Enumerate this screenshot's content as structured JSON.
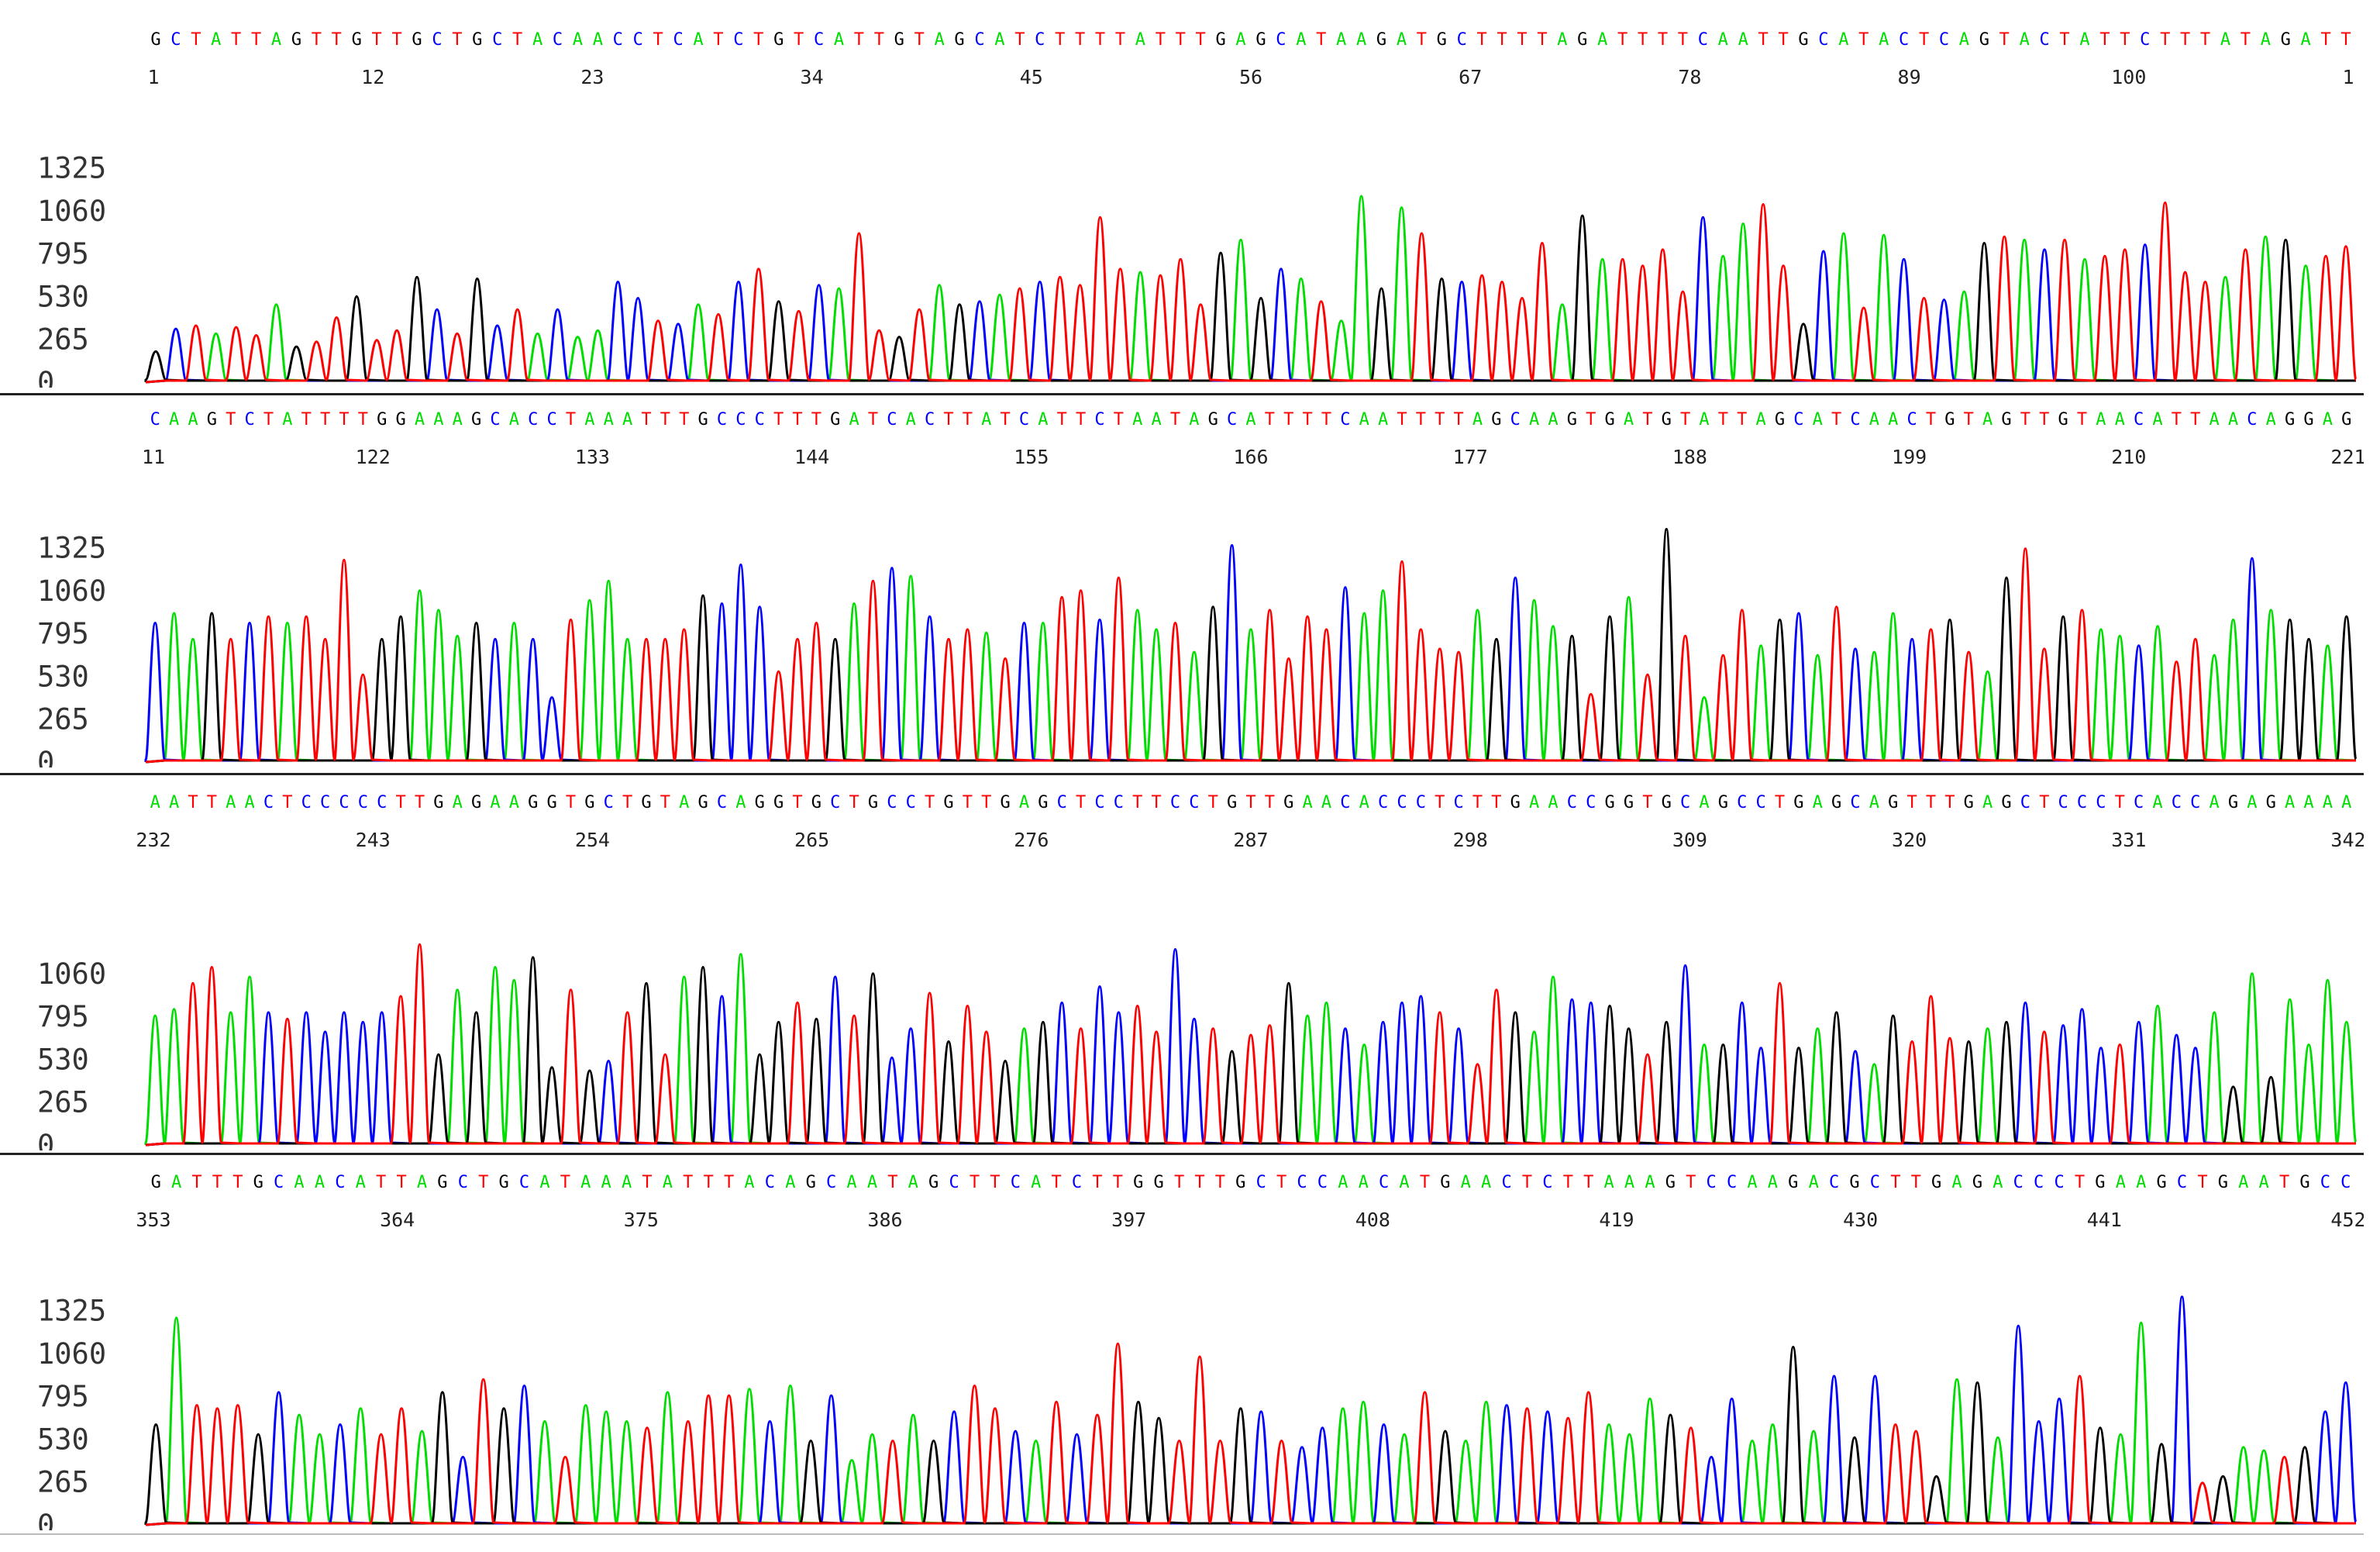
{
  "chart_data": {
    "type": "line",
    "title": "",
    "xlabel": "",
    "ylabel": "",
    "y_ticks": [
      0,
      265,
      530,
      795,
      1060,
      1325
    ],
    "ylim": [
      0,
      1500
    ],
    "base_colors": {
      "A": "#00dd00",
      "C": "#0000ff",
      "G": "#000000",
      "T": "#ff0000"
    },
    "rows": [
      {
        "sequence": "GCTATTAGTTGTTGCTGCTACAACCTCATCTGTCATTGTAGCATCTTTTATTTGAGCATAAGATGCTTTTAGATTTTCAATTGCATACTCAGTACTATTCTTTATAGATT",
        "positions": [
          "1",
          "12",
          "23",
          "34",
          "45",
          "56",
          "67",
          "78",
          "89",
          "100",
          "1"
        ],
        "heights": [
          190,
          330,
          350,
          300,
          340,
          290,
          480,
          220,
          250,
          400,
          530,
          260,
          320,
          650,
          450,
          300,
          640,
          350,
          450,
          300,
          450,
          280,
          320,
          620,
          520,
          380,
          360,
          480,
          420,
          620,
          700,
          500,
          440,
          600,
          580,
          920,
          320,
          280,
          450,
          600,
          480,
          500,
          540,
          580,
          620,
          650,
          600,
          1020,
          700,
          680,
          660,
          760,
          480,
          800,
          880,
          520,
          700,
          640,
          500,
          380,
          1150,
          580,
          1080,
          920,
          640,
          620,
          660,
          620,
          520,
          860,
          480,
          1030,
          760,
          760,
          720,
          820,
          560,
          1020,
          780,
          980,
          1100,
          720,
          360,
          810,
          920,
          460,
          910,
          760,
          520,
          510,
          560,
          860,
          900,
          880,
          820,
          880,
          760,
          780,
          820,
          850,
          1110,
          680,
          620,
          650,
          820,
          900,
          880,
          720,
          780,
          840
        ]
      },
      {
        "sequence": "CAAGTCTATTTTGGAAAGCACCTAAATTTGCCCTTTGATCACTTATCATTCTAATAGCATTTTCAATTTTAGCAAGTGATGTATTAGCATCAACTGTAGTTGTAACATTAACAGGAG",
        "positions": [
          "11",
          "122",
          "133",
          "144",
          "155",
          "166",
          "177",
          "188",
          "199",
          "210",
          "221"
        ],
        "heights": [
          860,
          920,
          760,
          920,
          760,
          860,
          900,
          860,
          900,
          760,
          1250,
          540,
          760,
          900,
          1060,
          940,
          780,
          860,
          760,
          860,
          760,
          400,
          880,
          1000,
          1120,
          760,
          760,
          760,
          820,
          1030,
          980,
          1220,
          960,
          560,
          760,
          860,
          760,
          980,
          1120,
          1200,
          1150,
          900,
          760,
          820,
          800,
          640,
          860,
          860,
          1020,
          1060,
          880,
          1140,
          940,
          820,
          860,
          680,
          960,
          1340,
          820,
          940,
          640,
          900,
          820,
          1080,
          920,
          1060,
          1240,
          820,
          700,
          680,
          940,
          760,
          1140,
          1000,
          840,
          780,
          420,
          900,
          1020,
          540,
          1440,
          780,
          400,
          660,
          940,
          720,
          880,
          920,
          660,
          960,
          700,
          680,
          920,
          760,
          820,
          880,
          680,
          560,
          1140,
          1320,
          700,
          900,
          940,
          820,
          780,
          720,
          840,
          620,
          760,
          660,
          880,
          1260,
          940,
          880,
          760,
          720,
          900,
          680,
          1340
        ]
      },
      {
        "sequence": "AATTAACTCCCCCTTGAGAAGGTGCTGTAGCAGGTGCTGCCTGTTGAGCTCCTTCCTGTTGAACACCCTCTTGAACCGGTGCAGCCTGAGCAGTTTGAGCTCCCTCACCAGAGAAAA",
        "positions": [
          "232",
          "243",
          "254",
          "265",
          "276",
          "287",
          "298",
          "309",
          "320",
          "331",
          "342"
        ],
        "heights": [
          800,
          840,
          1000,
          1100,
          820,
          1040,
          820,
          780,
          820,
          700,
          820,
          760,
          820,
          920,
          1240,
          560,
          960,
          820,
          1100,
          1020,
          1160,
          480,
          960,
          460,
          520,
          820,
          1000,
          560,
          1040,
          1100,
          920,
          1180,
          560,
          760,
          880,
          780,
          1040,
          800,
          1060,
          540,
          720,
          940,
          640,
          860,
          700,
          520,
          720,
          760,
          880,
          720,
          980,
          820,
          860,
          700,
          1210,
          780,
          720,
          580,
          680,
          740,
          1000,
          800,
          880,
          720,
          620,
          760,
          880,
          920,
          820,
          720,
          500,
          960,
          820,
          700,
          1040,
          900,
          880,
          860,
          720,
          560,
          760,
          1110,
          620,
          620,
          880,
          600,
          1000,
          600,
          720,
          820,
          580,
          500,
          800,
          640,
          920,
          660,
          640,
          720,
          760,
          880,
          700,
          740,
          840,
          600,
          620,
          760,
          860,
          680,
          600,
          820,
          360,
          1060,
          420,
          900,
          620,
          1020,
          760,
          800,
          560,
          1260
        ]
      },
      {
        "sequence": "GATTTGCAACATTAGCTGCATAAATATTTACAGCAATAGCTTCATCTTGGTTTGCTCCAACATGAACTCTTAAAGTCCAAGACGCTTGAGACCCTGAAGCTGAATGCC",
        "positions": [
          "353",
          "364",
          "375",
          "386",
          "397",
          "408",
          "419",
          "430",
          "441",
          "452"
        ],
        "heights": [
          620,
          1280,
          740,
          720,
          740,
          560,
          820,
          680,
          560,
          620,
          720,
          560,
          720,
          580,
          820,
          420,
          900,
          720,
          860,
          640,
          420,
          740,
          700,
          640,
          600,
          820,
          640,
          800,
          800,
          840,
          640,
          860,
          520,
          800,
          400,
          560,
          520,
          680,
          520,
          700,
          860,
          720,
          580,
          520,
          760,
          560,
          680,
          1120,
          760,
          660,
          520,
          1040,
          520,
          720,
          700,
          520,
          480,
          600,
          720,
          760,
          620,
          560,
          820,
          580,
          520,
          760,
          740,
          720,
          700,
          660,
          820,
          620,
          560,
          780,
          680,
          600,
          420,
          780,
          520,
          620,
          1100,
          580,
          920,
          540,
          920,
          620,
          580,
          300,
          900,
          880,
          540,
          1230,
          640,
          780,
          920,
          600,
          560,
          1250,
          500,
          1410,
          260,
          300,
          480,
          460,
          420,
          480,
          700,
          880,
          960
        ]
      }
    ]
  }
}
